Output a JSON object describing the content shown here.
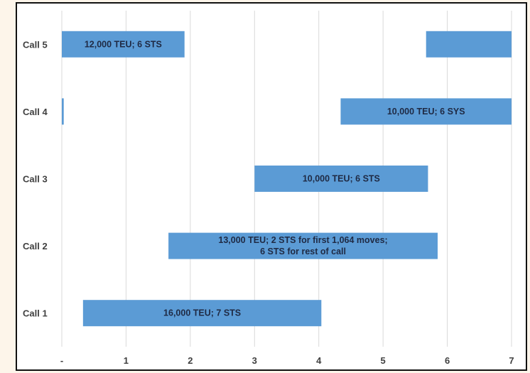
{
  "chart_data": {
    "type": "bar",
    "orientation": "horizontal-gantt",
    "categories": [
      "Call 5",
      "Call 4",
      "Call 3",
      "Call 2",
      "Call 1"
    ],
    "xlim": [
      0,
      7
    ],
    "x_ticks": [
      "-",
      "1",
      "2",
      "3",
      "4",
      "5",
      "6",
      "7"
    ],
    "grid": true,
    "legend": "none",
    "bar_color": "#5b9bd5",
    "segments": [
      {
        "category": "Call 5",
        "start": 0,
        "end": 1.91,
        "label": [
          "12,000 TEU; 6 STS"
        ]
      },
      {
        "category": "Call 5",
        "start": 5.67,
        "end": 7,
        "label": []
      },
      {
        "category": "Call 4",
        "start": 0,
        "end": 0.03,
        "label": []
      },
      {
        "category": "Call 4",
        "start": 4.34,
        "end": 7,
        "label": [
          "10,000 TEU; 6 SYS"
        ]
      },
      {
        "category": "Call 3",
        "start": 3.0,
        "end": 5.7,
        "label": [
          "10,000 TEU; 6 STS"
        ]
      },
      {
        "category": "Call 2",
        "start": 1.66,
        "end": 5.85,
        "label": [
          "13,000 TEU; 2 STS for first 1,064 moves;",
          "6 STS for rest of call"
        ]
      },
      {
        "category": "Call 1",
        "start": 0.33,
        "end": 4.04,
        "label": [
          "16,000 TEU; 7 STS"
        ]
      }
    ]
  }
}
